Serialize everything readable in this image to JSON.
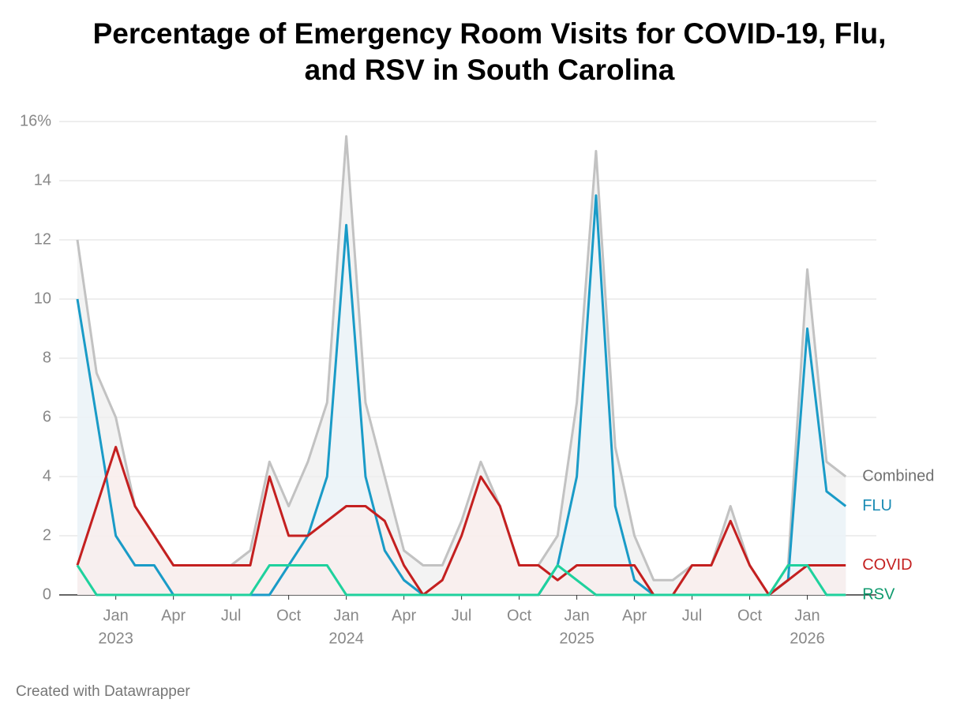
{
  "chart_data": {
    "type": "line",
    "title": "Percentage of Emergency Room Visits for COVID-19, Flu, and RSV in South Carolina",
    "credit": "Created with Datawrapper",
    "x": [
      "2022-11",
      "2022-12",
      "2023-01",
      "2023-02",
      "2023-03",
      "2023-04",
      "2023-05",
      "2023-06",
      "2023-07",
      "2023-08",
      "2023-09",
      "2023-10",
      "2023-11",
      "2023-12",
      "2024-01",
      "2024-02",
      "2024-03",
      "2024-04",
      "2024-05",
      "2024-06",
      "2024-07",
      "2024-08",
      "2024-09",
      "2024-10",
      "2024-11",
      "2024-12",
      "2025-01",
      "2025-02",
      "2025-03",
      "2025-04",
      "2025-05",
      "2025-06",
      "2025-07",
      "2025-08",
      "2025-09",
      "2025-10",
      "2025-11",
      "2025-12",
      "2026-01",
      "2026-02",
      "2026-03"
    ],
    "series": [
      {
        "name": "Combined",
        "color": "#c2c2c2",
        "label_color": "#707070",
        "fill": "#eeeeee",
        "values": [
          12,
          7.5,
          6,
          3,
          2,
          1,
          1,
          1,
          1,
          1.5,
          4.5,
          3,
          4.5,
          6.5,
          15.5,
          6.5,
          4,
          1.5,
          1,
          1,
          2.5,
          4.5,
          3,
          1,
          1,
          2,
          6.5,
          15,
          5,
          2,
          0.5,
          0.5,
          1,
          1,
          3,
          1,
          0,
          1,
          11,
          4.5,
          4
        ]
      },
      {
        "name": "FLU",
        "color": "#1a9bc7",
        "label_color": "#1a8bb4",
        "fill": "#eaf4fa",
        "values": [
          10,
          6,
          2,
          1,
          1,
          0,
          0,
          0,
          0,
          0,
          0,
          1,
          2,
          4,
          12.5,
          4,
          1.5,
          0.5,
          0,
          0,
          0,
          0,
          0,
          0,
          0,
          1,
          4,
          13.5,
          3,
          0.5,
          0,
          0,
          0,
          0,
          0,
          0,
          0,
          0.5,
          9,
          3.5,
          3
        ]
      },
      {
        "name": "COVID",
        "color": "#c42020",
        "label_color": "#c42020",
        "fill": "#fbeceb",
        "values": [
          1,
          3,
          5,
          3,
          2,
          1,
          1,
          1,
          1,
          1,
          4,
          2,
          2,
          2.5,
          3,
          3,
          2.5,
          1,
          0,
          0.5,
          2,
          4,
          3,
          1,
          1,
          0.5,
          1,
          1,
          1,
          1,
          0,
          0,
          1,
          1,
          2.5,
          1,
          0,
          0.5,
          1,
          1,
          1
        ]
      },
      {
        "name": "RSV",
        "color": "#1fd19d",
        "label_color": "#0f9a6e",
        "fill": "none",
        "values": [
          1,
          0,
          0,
          0,
          0,
          0,
          0,
          0,
          0,
          0,
          1,
          1,
          1,
          1,
          0,
          0,
          0,
          0,
          0,
          0,
          0,
          0,
          0,
          0,
          0,
          1,
          0.5,
          0,
          0,
          0,
          0,
          0,
          0,
          0,
          0,
          0,
          0,
          1,
          1,
          0,
          0
        ]
      }
    ],
    "ylim": [
      0,
      16
    ],
    "yticks": [
      0,
      2,
      4,
      6,
      8,
      10,
      12,
      14,
      {
        "value": 16,
        "label": "16%"
      }
    ],
    "xticks": [
      {
        "value": "2023-01",
        "label": "Jan",
        "year": "2023"
      },
      {
        "value": "2023-04",
        "label": "Apr"
      },
      {
        "value": "2023-07",
        "label": "Jul"
      },
      {
        "value": "2023-10",
        "label": "Oct"
      },
      {
        "value": "2024-01",
        "label": "Jan",
        "year": "2024"
      },
      {
        "value": "2024-04",
        "label": "Apr"
      },
      {
        "value": "2024-07",
        "label": "Jul"
      },
      {
        "value": "2024-10",
        "label": "Oct"
      },
      {
        "value": "2025-01",
        "label": "Jan",
        "year": "2025"
      },
      {
        "value": "2025-04",
        "label": "Apr"
      },
      {
        "value": "2025-07",
        "label": "Jul"
      },
      {
        "value": "2025-10",
        "label": "Oct"
      },
      {
        "value": "2026-01",
        "label": "Jan",
        "year": "2026"
      }
    ],
    "grid": true
  }
}
